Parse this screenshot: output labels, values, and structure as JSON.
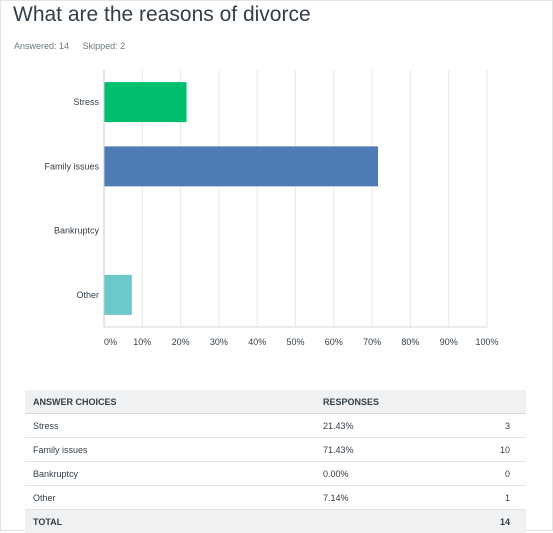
{
  "question": "What are the reasons of divorce",
  "answered": "Answered: 14",
  "skipped": "Skipped: 2",
  "chart_data": {
    "type": "bar",
    "orientation": "horizontal",
    "categories": [
      "Stress",
      "Family issues",
      "Bankruptcy",
      "Other"
    ],
    "values": [
      21.43,
      71.43,
      0.0,
      7.14
    ],
    "colors": [
      "#00bf6f",
      "#507cb6",
      "#f05b24",
      "#6bc8cd"
    ],
    "xlim": [
      0,
      100
    ],
    "xticks": [
      "0%",
      "10%",
      "20%",
      "30%",
      "40%",
      "50%",
      "60%",
      "70%",
      "80%",
      "90%",
      "100%"
    ],
    "grid": true
  },
  "table": {
    "headers": [
      "Answer Choices",
      "Responses"
    ],
    "rows": [
      {
        "choice": "Stress",
        "percent": "21.43%",
        "count": "3"
      },
      {
        "choice": "Family issues",
        "percent": "71.43%",
        "count": "10"
      },
      {
        "choice": "Bankruptcy",
        "percent": "0.00%",
        "count": "0"
      },
      {
        "choice": "Other",
        "percent": "7.14%",
        "count": "1"
      }
    ],
    "total_label": "Total",
    "total_value": "14"
  }
}
